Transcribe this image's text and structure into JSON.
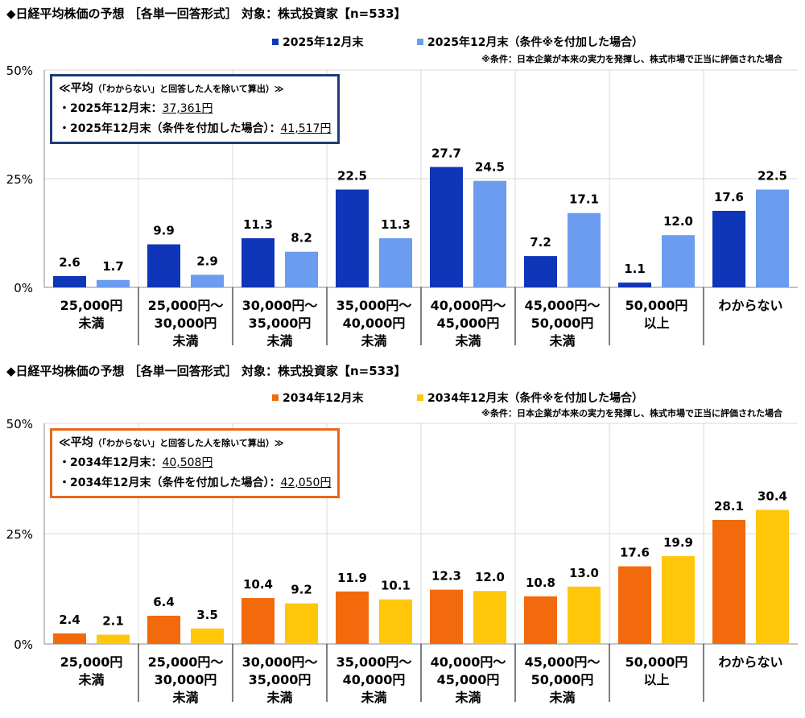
{
  "chart_data": [
    {
      "type": "bar",
      "title": "◆日経平均株価の予想 ［各単一回答形式］ 対象：株式投資家【n=533】",
      "categories": [
        "25,000円\n未満",
        "25,000円～\n30,000円\n未満",
        "30,000円～\n35,000円\n未満",
        "35,000円～\n40,000円\n未満",
        "40,000円～\n45,000円\n未満",
        "45,000円～\n50,000円\n未満",
        "50,000円\n以上",
        "わからない"
      ],
      "series": [
        {
          "name": "2025年12月末",
          "color": "#0f35b8",
          "values": [
            2.6,
            9.9,
            11.3,
            22.5,
            27.7,
            7.2,
            1.1,
            17.6
          ]
        },
        {
          "name": "2025年12月末（条件※を付加した場合）",
          "color": "#6b9cf0",
          "values": [
            1.7,
            2.9,
            8.2,
            11.3,
            24.5,
            17.1,
            12.0,
            22.5
          ]
        }
      ],
      "note": "※条件：日本企業が本来の実力を発揮し、株式市場で正当に評価された場合",
      "yticks": [
        "50%",
        "25%",
        "0%"
      ],
      "ylim": [
        0,
        50
      ],
      "ylabel": "",
      "xlabel": "",
      "legend": "top",
      "avg_box": {
        "heading": "≪平均",
        "heading_note": "（「わからない」と回答した人を除いて算出）≫",
        "line1_label": "・2025年12月末：",
        "line1_value": "37,361円",
        "line2_label": "・2025年12月末（条件を付加した場合）：",
        "line2_value": "41,517円",
        "border_color": "#1f3c78"
      }
    },
    {
      "type": "bar",
      "title": "◆日経平均株価の予想 ［各単一回答形式］ 対象：株式投資家【n=533】",
      "categories": [
        "25,000円\n未満",
        "25,000円～\n30,000円\n未満",
        "30,000円～\n35,000円\n未満",
        "35,000円～\n40,000円\n未満",
        "40,000円～\n45,000円\n未満",
        "45,000円～\n50,000円\n未満",
        "50,000円\n以上",
        "わからない"
      ],
      "series": [
        {
          "name": "2034年12月末",
          "color": "#f26a0c",
          "values": [
            2.4,
            6.4,
            10.4,
            11.9,
            12.3,
            10.8,
            17.6,
            28.1
          ]
        },
        {
          "name": "2034年12月末（条件※を付加した場合）",
          "color": "#ffc60a",
          "values": [
            2.1,
            3.5,
            9.2,
            10.1,
            12.0,
            13.0,
            19.9,
            30.4
          ]
        }
      ],
      "note": "※条件：日本企業が本来の実力を発揮し、株式市場で正当に評価された場合",
      "yticks": [
        "50%",
        "25%",
        "0%"
      ],
      "ylim": [
        0,
        50
      ],
      "ylabel": "",
      "xlabel": "",
      "legend": "top",
      "avg_box": {
        "heading": "≪平均",
        "heading_note": "（「わからない」と回答した人を除いて算出）≫",
        "line1_label": "・2034年12月末：",
        "line1_value": "40,508円",
        "line2_label": "・2034年12月末（条件を付加した場合）：",
        "line2_value": "42,050円",
        "border_color": "#e8661c"
      }
    }
  ]
}
